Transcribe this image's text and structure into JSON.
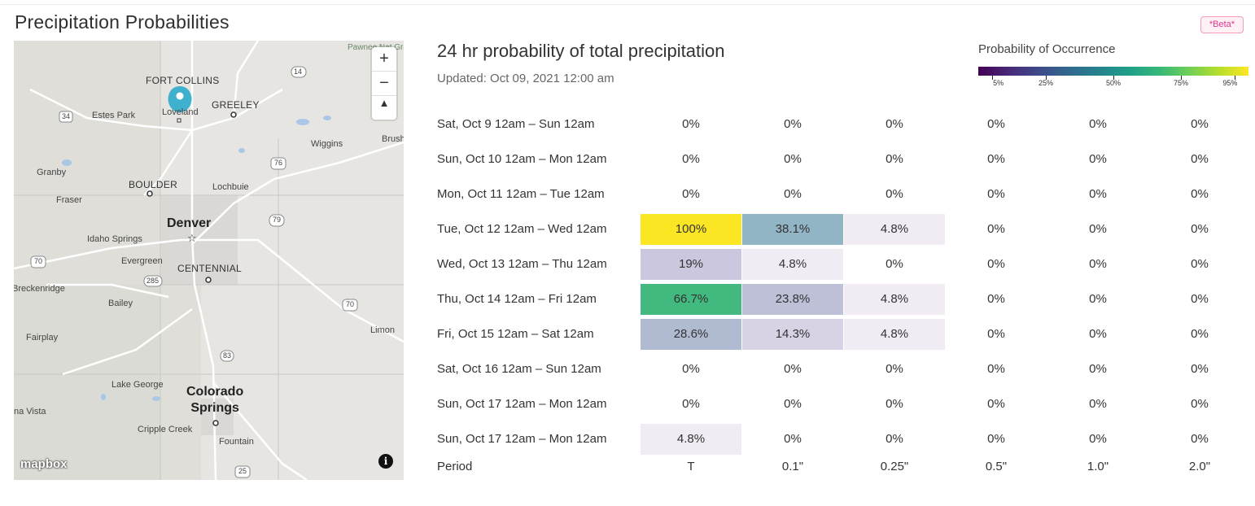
{
  "page": {
    "title": "Precipitation Probabilities",
    "beta_badge": "*Beta*"
  },
  "map": {
    "labels": {
      "pawnee": "Pawnee Nat\nGrassla",
      "fort_collins": "FORT COLLINS",
      "loveland": "Loveland",
      "greeley": "GREELEY",
      "estes_park": "Estes Park",
      "wiggins": "Wiggins",
      "brush": "Brush",
      "granby": "Granby",
      "boulder": "BOULDER",
      "lochbuie": "Lochbuie",
      "fraser": "Fraser",
      "denver": "Denver",
      "idaho_springs": "Idaho Springs",
      "evergreen": "Evergreen",
      "centennial": "CENTENNIAL",
      "breckenridge": "Breckenridge",
      "bailey": "Bailey",
      "fairplay": "Fairplay",
      "limon": "Limon",
      "lake_george": "Lake George",
      "colorado_springs": "Colorado\nSprings",
      "buena_vista": "na Vista",
      "cripple_creek": "Cripple Creek",
      "fountain": "Fountain"
    },
    "highway_shields": [
      "14",
      "34",
      "76",
      "79",
      "70",
      "285",
      "70",
      "83",
      "25"
    ],
    "zoom_in": "+",
    "zoom_out": "−",
    "compass": "▲",
    "attribution_logo": "mapbox",
    "info": "i",
    "marker_color": "#3fb1ce"
  },
  "chart": {
    "title": "24 hr probability of total precipitation",
    "updated": "Updated: Oct 09, 2021 12:00 am"
  },
  "legend": {
    "title": "Probability of Occurrence",
    "ticks": [
      "5%",
      "25%",
      "50%",
      "75%",
      "95%"
    ],
    "colormap": "viridis"
  },
  "chart_data": {
    "type": "table",
    "title": "24 hr probability of total precipitation",
    "column_header_label": "Period",
    "columns": [
      "T",
      "0.1\"",
      "0.25\"",
      "0.5\"",
      "1.0\"",
      "2.0\""
    ],
    "rows": [
      {
        "period": "Sat, Oct 9 12am – Sun 12am",
        "values": [
          "0%",
          "0%",
          "0%",
          "0%",
          "0%",
          "0%"
        ],
        "probs": [
          0,
          0,
          0,
          0,
          0,
          0
        ]
      },
      {
        "period": "Sun, Oct 10 12am – Mon 12am",
        "values": [
          "0%",
          "0%",
          "0%",
          "0%",
          "0%",
          "0%"
        ],
        "probs": [
          0,
          0,
          0,
          0,
          0,
          0
        ]
      },
      {
        "period": "Mon, Oct 11 12am – Tue 12am",
        "values": [
          "0%",
          "0%",
          "0%",
          "0%",
          "0%",
          "0%"
        ],
        "probs": [
          0,
          0,
          0,
          0,
          0,
          0
        ]
      },
      {
        "period": "Tue, Oct 12 12am – Wed 12am",
        "values": [
          "100%",
          "38.1%",
          "4.8%",
          "0%",
          "0%",
          "0%"
        ],
        "probs": [
          100,
          38.1,
          4.8,
          0,
          0,
          0
        ]
      },
      {
        "period": "Wed, Oct 13 12am – Thu 12am",
        "values": [
          "19%",
          "4.8%",
          "0%",
          "0%",
          "0%",
          "0%"
        ],
        "probs": [
          19,
          4.8,
          0,
          0,
          0,
          0
        ]
      },
      {
        "period": "Thu, Oct 14 12am – Fri 12am",
        "values": [
          "66.7%",
          "23.8%",
          "4.8%",
          "0%",
          "0%",
          "0%"
        ],
        "probs": [
          66.7,
          23.8,
          4.8,
          0,
          0,
          0
        ]
      },
      {
        "period": "Fri, Oct 15 12am – Sat 12am",
        "values": [
          "28.6%",
          "14.3%",
          "4.8%",
          "0%",
          "0%",
          "0%"
        ],
        "probs": [
          28.6,
          14.3,
          4.8,
          0,
          0,
          0
        ]
      },
      {
        "period": "Sat, Oct 16 12am – Sun 12am",
        "values": [
          "0%",
          "0%",
          "0%",
          "0%",
          "0%",
          "0%"
        ],
        "probs": [
          0,
          0,
          0,
          0,
          0,
          0
        ]
      },
      {
        "period": "Sun, Oct 17 12am – Mon 12am",
        "values": [
          "0%",
          "0%",
          "0%",
          "0%",
          "0%",
          "0%"
        ],
        "probs": [
          0,
          0,
          0,
          0,
          0,
          0
        ]
      },
      {
        "period": "Sun, Oct 17 12am – Mon 12am",
        "values": [
          "4.8%",
          "0%",
          "0%",
          "0%",
          "0%",
          "0%"
        ],
        "probs": [
          4.8,
          0,
          0,
          0,
          0,
          0
        ]
      }
    ]
  }
}
